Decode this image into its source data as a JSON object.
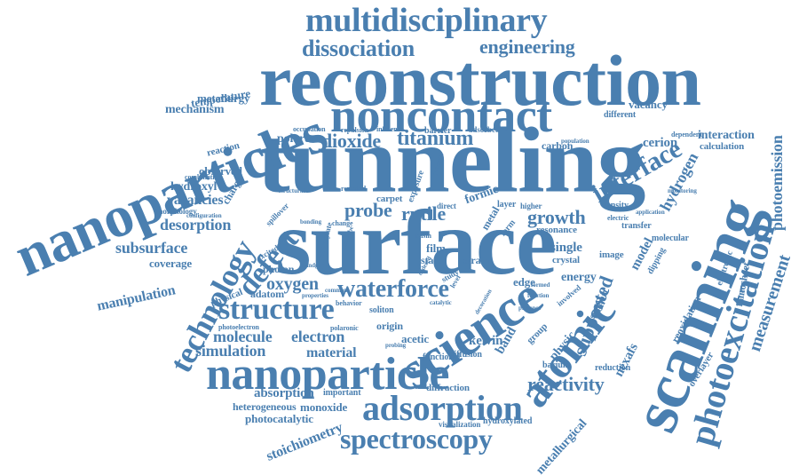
{
  "style": {
    "word_color": "#4a7fb0",
    "background": "#ffffff"
  },
  "words": {
    "multidisciplinary": "multidisciplinary",
    "dissociation": "dissociation",
    "engineering": "engineering",
    "reconstruction": "reconstruction",
    "noncontact": "noncontact",
    "nanoparticles": "nanoparticles",
    "tunneling": "tunneling",
    "surface": "surface",
    "scanning": "scanning",
    "photoexcitation": "photoexcitation",
    "interface": "interface",
    "titanium": "titanium",
    "dioxide": "dioxide",
    "technology": "technology",
    "defect": "defect",
    "structure": "structure",
    "waterforce": "waterforce",
    "science": "science",
    "atomic": "atomic",
    "nanoparticle": "nanoparticle",
    "adsorption": "adsorption",
    "spectroscopy": "spectroscopy",
    "growth": "growth",
    "rutile": "rutile",
    "probe": "probe",
    "oxygen": "oxygen",
    "electron": "electron",
    "molecule": "molecule",
    "simulation": "simulation",
    "material": "material",
    "reactivity": "reactivity",
    "measurement": "measurement",
    "photoemission": "photoemission",
    "supported": "supported",
    "hydrogen": "hydrogen",
    "subsurface": "subsurface",
    "desorption": "desorption",
    "vacancies": "vacancies",
    "manipulation": "manipulation",
    "coverage": "coverage",
    "mechanism": "mechanism",
    "metallurgy": "metallurgy",
    "temperature": "temperature",
    "polaron": "polaron",
    "observed": "observed",
    "hydroxyl": "hydroxyl",
    "absorption": "absorption",
    "heterogeneous": "heterogeneous",
    "photocatalytic": "photocatalytic",
    "stoichiometry": "stoichiometry",
    "monoxide": "monoxide",
    "metallurgical": "metallurgical",
    "interaction": "interaction",
    "calculation": "calculation",
    "cerion": "cerion",
    "carbon": "carbon",
    "vacancy": "vacancy",
    "different": "different",
    "nanosheet": "nanosheet",
    "reoxidation": "reoxidation",
    "electronic": "electronic",
    "nexafs": "nexafs",
    "overlayer": "overlayer",
    "barium": "barium",
    "reduction": "reduction",
    "kelvin": "kelvin",
    "band": "band",
    "physic": "physic",
    "single": "single",
    "crystal": "crystal",
    "image": "image",
    "energy": "energy",
    "resonance": "resonance",
    "edge": "edge",
    "film": "film",
    "state": "state",
    "strain": "strain",
    "formic": "formic",
    "carpet": "carpet",
    "acetic": "acetic",
    "origin": "origin",
    "adatom": "adatom",
    "photon": "photon",
    "physical": "physical",
    "charge": "charge",
    "diffraction": "diffraction",
    "important": "important",
    "visualization": "visualization",
    "hydroxylated": "hydroxylated",
    "diffusion": "diffusion",
    "functional": "functional",
    "model": "model",
    "metal": "metal",
    "layer": "layer",
    "reaction": "reaction",
    "combination": "combination",
    "morphology": "morphology",
    "excited": "excited",
    "bonding": "bonding",
    "change": "change",
    "soliton": "soliton",
    "polaronic": "polaronic",
    "study": "study",
    "transfer": "transfer",
    "molecular": "molecular",
    "density": "density",
    "dependent": "dependent",
    "application": "application",
    "electric": "electric",
    "exposure": "exposure",
    "direct": "direct",
    "photoelectron": "photoelectron",
    "carboxylate": "carboxylate",
    "group": "group",
    "occupation": "occupation",
    "repulsion": "repulsion",
    "influence": "influence",
    "barrier": "barrier",
    "adsorbed": "adsorbed",
    "dipping": "dipping",
    "support": "support",
    "involved": "involved",
    "revealed": "revealed",
    "configuration": "configuration",
    "spillover": "spillover",
    "behavior": "behavior",
    "higher": "higher",
    "form": "form",
    "basin": "basin",
    "comment": "comment",
    "level": "level",
    "monitoring": "monitoring",
    "population": "population",
    "potential": "potential",
    "structural": "structural",
    "bandgap": "bandgap",
    "nanotube": "nanotube",
    "properties": "properties",
    "probing": "probing",
    "ordered": "ordered",
    "catalytic": "catalytic",
    "decoration": "decoration",
    "presence": "presence",
    "function": "function",
    "formed": "formed"
  }
}
